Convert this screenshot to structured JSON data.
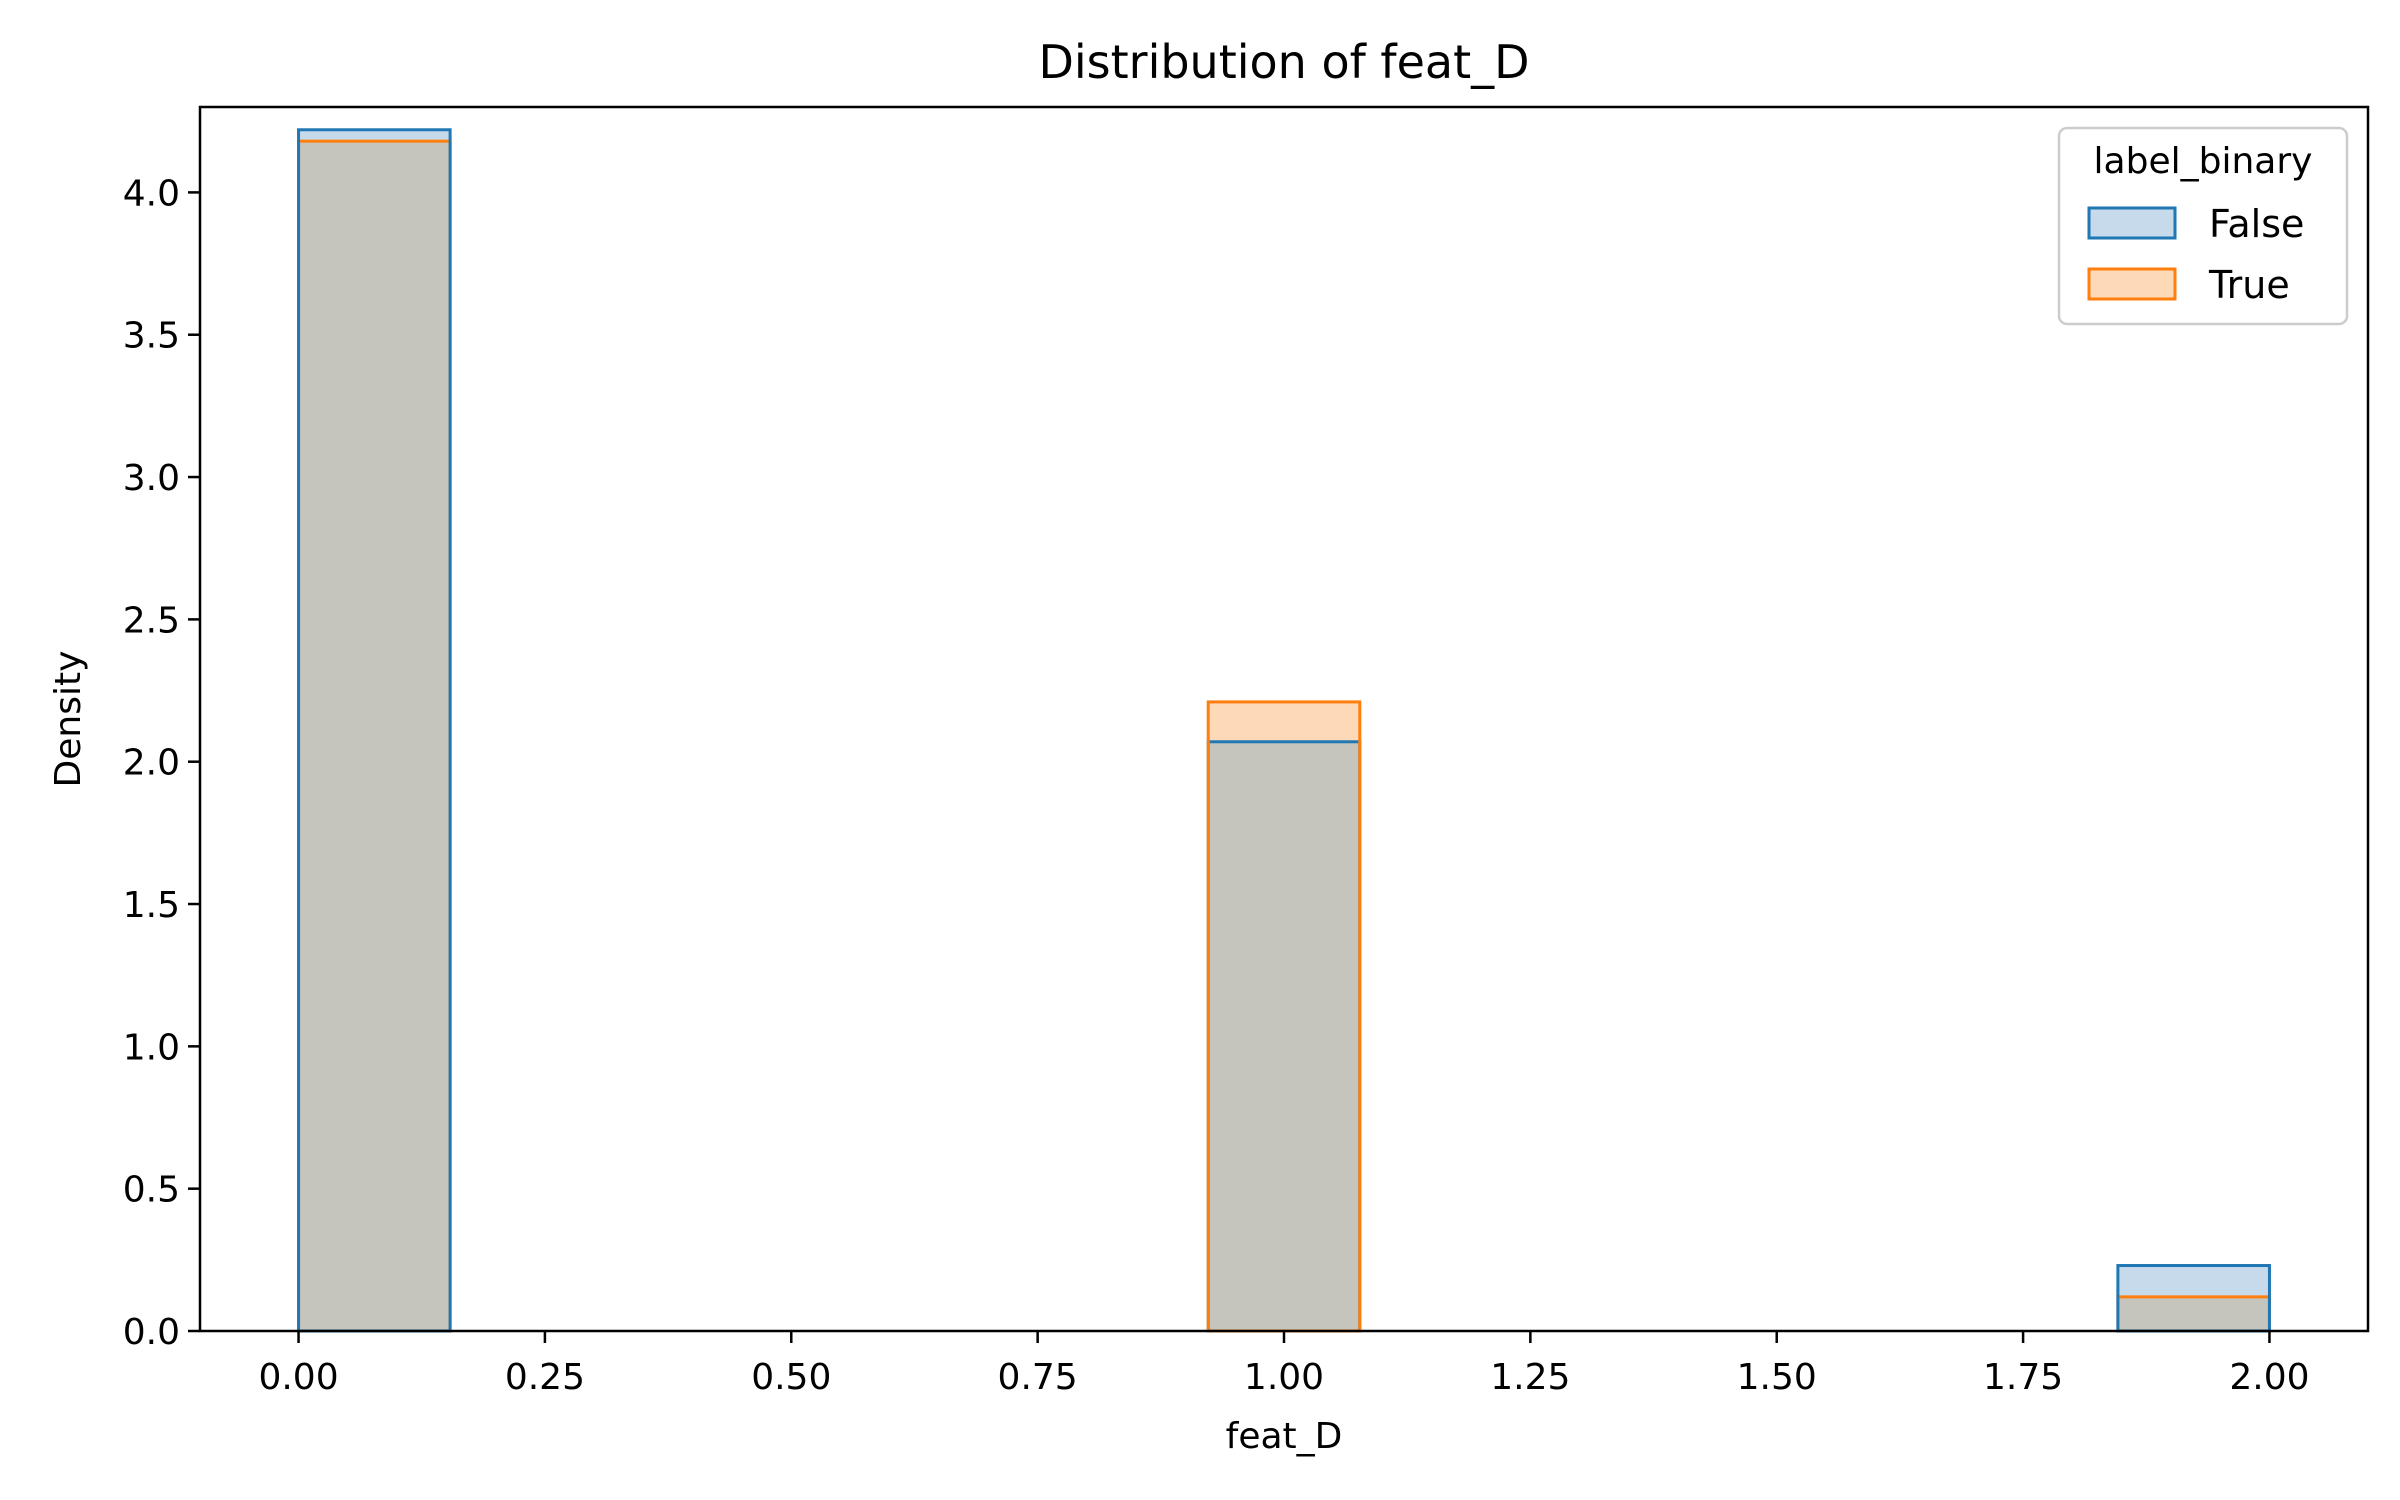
{
  "chart_data": {
    "type": "bar",
    "subtype": "histogram-density",
    "title": "Distribution of feat_D",
    "xlabel": "feat_D",
    "ylabel": "Density",
    "xlim": [
      -0.1,
      2.1
    ],
    "ylim": [
      0,
      4.3
    ],
    "xticks": [
      "0.00",
      "0.25",
      "0.50",
      "0.75",
      "1.00",
      "1.25",
      "1.50",
      "1.75",
      "2.00"
    ],
    "xtick_values": [
      0,
      0.25,
      0.5,
      0.75,
      1.0,
      1.25,
      1.5,
      1.75,
      2.0
    ],
    "yticks": [
      "0.0",
      "0.5",
      "1.0",
      "1.5",
      "2.0",
      "2.5",
      "3.0",
      "3.5",
      "4.0"
    ],
    "ytick_values": [
      0,
      0.5,
      1.0,
      1.5,
      2.0,
      2.5,
      3.0,
      3.5,
      4.0
    ],
    "bins": [
      {
        "start": 0.0,
        "end": 0.1538
      },
      {
        "start": 0.9231,
        "end": 1.0769
      },
      {
        "start": 1.8462,
        "end": 2.0
      }
    ],
    "series": [
      {
        "name": "False",
        "values": [
          4.22,
          2.07,
          0.23
        ],
        "color": "#1f77b4",
        "fill": "#c6daec"
      },
      {
        "name": "True",
        "values": [
          4.18,
          2.21,
          0.12
        ],
        "color": "#ff7f0e",
        "fill": "#fdd9b8"
      }
    ],
    "overlap_fill": "#c5c4bd",
    "legend": {
      "title": "label_binary",
      "position": "top-right"
    },
    "grid": false
  }
}
